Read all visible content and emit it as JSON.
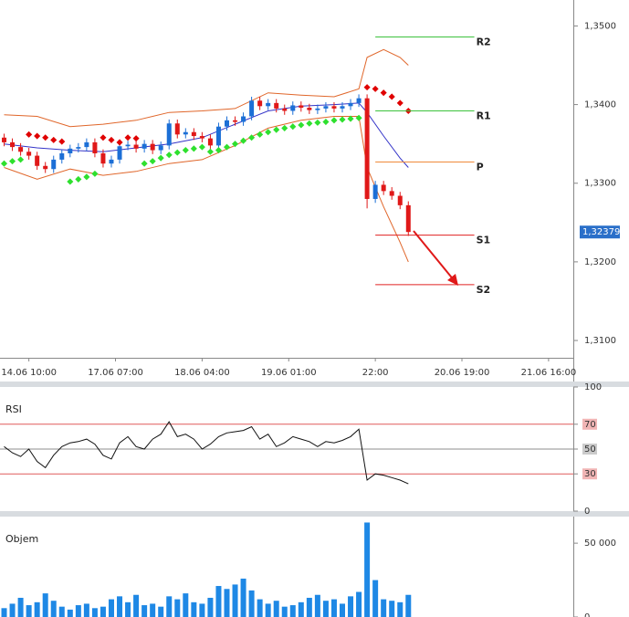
{
  "chart_data": [
    {
      "type": "candlestick",
      "x": [
        1,
        3,
        5,
        7,
        9,
        11,
        13,
        15,
        17,
        19,
        21,
        23,
        25,
        27,
        29,
        31,
        33,
        35,
        37,
        39,
        41,
        43,
        45,
        47,
        49,
        51,
        53,
        55,
        57,
        59,
        61,
        63,
        65,
        67,
        69,
        71,
        73,
        75,
        77,
        79,
        81,
        83,
        85,
        87,
        89,
        91,
        93,
        95,
        97,
        99
      ],
      "open": [
        1.3358,
        1.3352,
        1.3346,
        1.334,
        1.3335,
        1.3322,
        1.3318,
        1.333,
        1.3338,
        1.3344,
        1.3346,
        1.3352,
        1.3338,
        1.3325,
        1.333,
        1.3347,
        1.3349,
        1.3344,
        1.335,
        1.3342,
        1.3348,
        1.3376,
        1.3362,
        1.3365,
        1.336,
        1.3357,
        1.3348,
        1.3372,
        1.338,
        1.3378,
        1.3385,
        1.3405,
        1.3398,
        1.3402,
        1.3395,
        1.3392,
        1.3399,
        1.3396,
        1.3393,
        1.3395,
        1.3398,
        1.3395,
        1.3398,
        1.3402,
        1.3408,
        1.328,
        1.3298,
        1.329,
        1.3284,
        1.3272
      ],
      "high": [
        1.3363,
        1.3357,
        1.3351,
        1.3345,
        1.334,
        1.3327,
        1.3335,
        1.3343,
        1.3349,
        1.3351,
        1.3357,
        1.3357,
        1.3343,
        1.3335,
        1.3352,
        1.3354,
        1.3354,
        1.3355,
        1.3355,
        1.3353,
        1.3381,
        1.3381,
        1.337,
        1.337,
        1.3365,
        1.3362,
        1.3377,
        1.3385,
        1.3385,
        1.339,
        1.341,
        1.341,
        1.3407,
        1.3407,
        1.34,
        1.3404,
        1.3404,
        1.3401,
        1.34,
        1.3403,
        1.3403,
        1.3403,
        1.3407,
        1.3413,
        1.3413,
        1.3303,
        1.3303,
        1.3295,
        1.3289,
        1.3277
      ],
      "low": [
        1.3347,
        1.3341,
        1.3335,
        1.333,
        1.3317,
        1.3313,
        1.3313,
        1.3325,
        1.3333,
        1.3339,
        1.3341,
        1.3333,
        1.332,
        1.332,
        1.3325,
        1.3342,
        1.3339,
        1.3339,
        1.3337,
        1.3337,
        1.3343,
        1.3357,
        1.3357,
        1.3355,
        1.3352,
        1.3343,
        1.3343,
        1.3367,
        1.3373,
        1.3373,
        1.338,
        1.3393,
        1.3393,
        1.339,
        1.3387,
        1.3387,
        1.3391,
        1.3388,
        1.3388,
        1.339,
        1.339,
        1.339,
        1.3393,
        1.3397,
        1.3268,
        1.3275,
        1.3285,
        1.3279,
        1.3267,
        1.3233
      ],
      "close": [
        1.3352,
        1.3346,
        1.334,
        1.3335,
        1.3322,
        1.3318,
        1.333,
        1.3338,
        1.3344,
        1.3346,
        1.3352,
        1.3338,
        1.3325,
        1.333,
        1.3347,
        1.3349,
        1.3344,
        1.335,
        1.3342,
        1.3348,
        1.3376,
        1.3362,
        1.3365,
        1.336,
        1.3357,
        1.3348,
        1.3372,
        1.338,
        1.3378,
        1.3385,
        1.3405,
        1.3398,
        1.3402,
        1.3395,
        1.3392,
        1.3399,
        1.3396,
        1.3393,
        1.3395,
        1.3398,
        1.3395,
        1.3398,
        1.3402,
        1.3408,
        1.328,
        1.3298,
        1.329,
        1.3284,
        1.3272,
        1.3238
      ],
      "up_color": "#1c6fd6",
      "down_color": "#e01818",
      "bands": {
        "x": [
          1,
          9,
          17,
          25,
          33,
          41,
          49,
          57,
          65,
          73,
          81,
          87,
          89,
          93,
          97,
          99
        ],
        "upper": [
          1.3387,
          1.3385,
          1.3372,
          1.3375,
          1.338,
          1.339,
          1.3392,
          1.3395,
          1.3415,
          1.3412,
          1.341,
          1.342,
          1.346,
          1.347,
          1.346,
          1.345
        ],
        "middle": [
          1.335,
          1.3345,
          1.3342,
          1.334,
          1.3345,
          1.335,
          1.3358,
          1.3375,
          1.3392,
          1.3398,
          1.34,
          1.3402,
          1.339,
          1.336,
          1.3332,
          1.332
        ],
        "lower": [
          1.332,
          1.3305,
          1.3318,
          1.331,
          1.3315,
          1.3325,
          1.333,
          1.3348,
          1.337,
          1.338,
          1.3385,
          1.3385,
          1.332,
          1.327,
          1.3225,
          1.32
        ],
        "band_color": "#e0662a",
        "middle_color": "#3434c8"
      },
      "sar": {
        "values": [
          1.3325,
          1.3328,
          1.333,
          1.3362,
          1.336,
          1.3358,
          1.3355,
          1.3353,
          1.3302,
          1.3305,
          1.3308,
          1.3312,
          1.3358,
          1.3355,
          1.3352,
          1.3358,
          1.3357,
          1.3325,
          1.3328,
          1.3332,
          1.3336,
          1.3339,
          1.3342,
          1.3344,
          1.3346,
          1.334,
          1.3342,
          1.3346,
          1.335,
          1.3354,
          1.3358,
          1.3362,
          1.3365,
          1.3368,
          1.337,
          1.3372,
          1.3374,
          1.3376,
          1.3377,
          1.3378,
          1.338,
          1.3381,
          1.3382,
          1.3383,
          1.3422,
          1.342,
          1.3415,
          1.341,
          1.3402,
          1.3392
        ],
        "up_color": "#2ee02e",
        "down_color": "#e00000"
      },
      "levels_x": [
        91,
        115
      ],
      "levels": [
        {
          "name": "R2",
          "value": 1.3486,
          "color": "#3cc23c"
        },
        {
          "name": "R1",
          "value": 1.3392,
          "color": "#3cc23c"
        },
        {
          "name": "P",
          "value": 1.3327,
          "color": "#f08a3a"
        },
        {
          "name": "S1",
          "value": 1.3234,
          "color": "#e02020"
        },
        {
          "name": "S2",
          "value": 1.3171,
          "color": "#e02020"
        }
      ],
      "last_price": {
        "value": 1.32379,
        "label": "1,32379"
      },
      "xlim": [
        0,
        139
      ],
      "xticks": [
        {
          "value": 7,
          "label": "14.06 10:00"
        },
        {
          "value": 28,
          "label": "17.06 07:00"
        },
        {
          "value": 49,
          "label": "18.06 04:00"
        },
        {
          "value": 70,
          "label": "19.06 01:00"
        },
        {
          "value": 91,
          "label": "22:00"
        },
        {
          "value": 112,
          "label": "20.06 19:00"
        },
        {
          "value": 133,
          "label": "21.06 16:00"
        }
      ],
      "ylim": [
        1.3078,
        1.3533
      ],
      "yticks": [
        {
          "value": 1.35,
          "label": "1,3500"
        },
        {
          "value": 1.34,
          "label": "1,3400"
        },
        {
          "value": 1.33,
          "label": "1,3300"
        },
        {
          "value": 1.32,
          "label": "1,3200"
        },
        {
          "value": 1.31,
          "label": "1,3100"
        }
      ]
    },
    {
      "type": "line",
      "title": "RSI",
      "x": [
        1,
        3,
        5,
        7,
        9,
        11,
        13,
        15,
        17,
        19,
        21,
        23,
        25,
        27,
        29,
        31,
        33,
        35,
        37,
        39,
        41,
        43,
        45,
        47,
        49,
        51,
        53,
        55,
        57,
        59,
        61,
        63,
        65,
        67,
        69,
        71,
        73,
        75,
        77,
        79,
        81,
        83,
        85,
        87,
        89,
        91,
        93,
        95,
        97,
        99
      ],
      "values": [
        52,
        47,
        44,
        50,
        40,
        35,
        45,
        52,
        55,
        56,
        58,
        54,
        45,
        42,
        55,
        60,
        52,
        50,
        58,
        62,
        72,
        60,
        62,
        58,
        50,
        54,
        60,
        63,
        64,
        65,
        68,
        58,
        62,
        52,
        55,
        60,
        58,
        56,
        52,
        56,
        55,
        57,
        60,
        66,
        25,
        30,
        29,
        27,
        25,
        22
      ],
      "color": "#111111",
      "xlim": [
        0,
        139
      ],
      "ylim": [
        0,
        100
      ],
      "yticks": [
        100,
        70,
        50,
        30,
        0
      ],
      "ref_colors": [
        null,
        "#e05a5a",
        "#8c8c8c",
        "#e05a5a",
        null
      ]
    },
    {
      "type": "bar",
      "title": "Objem",
      "x": [
        1,
        3,
        5,
        7,
        9,
        11,
        13,
        15,
        17,
        19,
        21,
        23,
        25,
        27,
        29,
        31,
        33,
        35,
        37,
        39,
        41,
        43,
        45,
        47,
        49,
        51,
        53,
        55,
        57,
        59,
        61,
        63,
        65,
        67,
        69,
        71,
        73,
        75,
        77,
        79,
        81,
        83,
        85,
        87,
        89,
        91,
        93,
        95,
        97,
        99
      ],
      "values": [
        6000,
        9000,
        13000,
        8000,
        10000,
        16000,
        11000,
        7000,
        5000,
        8000,
        9000,
        6000,
        7000,
        12000,
        14000,
        10000,
        15000,
        8000,
        9000,
        7000,
        14000,
        12000,
        16000,
        10000,
        9000,
        13000,
        21000,
        19000,
        22000,
        26000,
        18000,
        12000,
        9000,
        11000,
        7000,
        8000,
        10000,
        13000,
        15000,
        11000,
        12000,
        9000,
        14000,
        17000,
        64000,
        25000,
        12000,
        11000,
        10000,
        15000
      ],
      "color": "#1e88e5",
      "xlim": [
        0,
        139
      ],
      "ylim": [
        0,
        68000
      ],
      "yticks": [
        {
          "value": 50000,
          "label": "50 000"
        },
        0
      ]
    }
  ]
}
